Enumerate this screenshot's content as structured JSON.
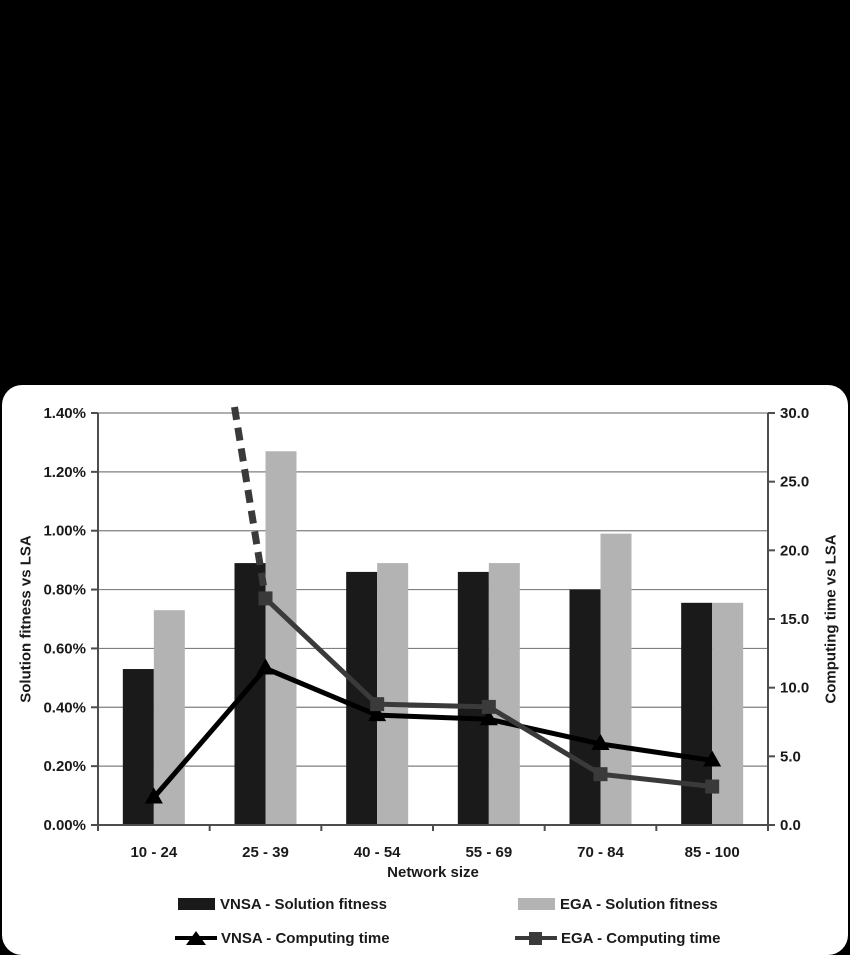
{
  "background": {
    "canvas_color": "#000000",
    "card_color": "#ffffff"
  },
  "chart_data": {
    "type": "combo-bar-line",
    "title": "",
    "categories": [
      "10 - 24",
      "25 - 39",
      "40 - 54",
      "55 - 69",
      "70 - 84",
      "85 - 100"
    ],
    "xlabel": "Network size",
    "grid": true,
    "legend_position": "bottom",
    "left_axis": {
      "label": "Solution fitness vs LSA",
      "min": 0,
      "max": 1.4,
      "unit": "%",
      "tick_labels": [
        "0.00%",
        "0.20%",
        "0.40%",
        "0.60%",
        "0.80%",
        "1.00%",
        "1.20%",
        "1.40%"
      ]
    },
    "right_axis": {
      "label": "Computing time vs LSA",
      "min": 0,
      "max": 30,
      "tick_labels": [
        "0.0",
        "5.0",
        "10.0",
        "15.0",
        "20.0",
        "25.0",
        "30.0"
      ]
    },
    "series": [
      {
        "name": "VNSA - Solution fitness",
        "type": "bar",
        "axis": "left",
        "color": "#1a1a1a",
        "values_percent": [
          0.53,
          0.89,
          0.86,
          0.86,
          0.8,
          0.755
        ]
      },
      {
        "name": "EGA - Solution fitness",
        "type": "bar",
        "axis": "left",
        "color": "#b3b3b3",
        "values_percent": [
          0.73,
          1.27,
          0.89,
          0.89,
          0.99,
          0.755
        ]
      },
      {
        "name": "VNSA - Computing time",
        "type": "line",
        "axis": "right",
        "color": "#000000",
        "marker": "triangle",
        "values": [
          2.0,
          11.4,
          8.0,
          7.7,
          5.9,
          4.7
        ]
      },
      {
        "name": "EGA - Computing time",
        "type": "line",
        "axis": "right",
        "color": "#3a3a3a",
        "marker": "square",
        "values": [
          null,
          16.5,
          8.8,
          8.6,
          3.7,
          2.8
        ],
        "first_point_offscale_dashed": true
      }
    ]
  }
}
